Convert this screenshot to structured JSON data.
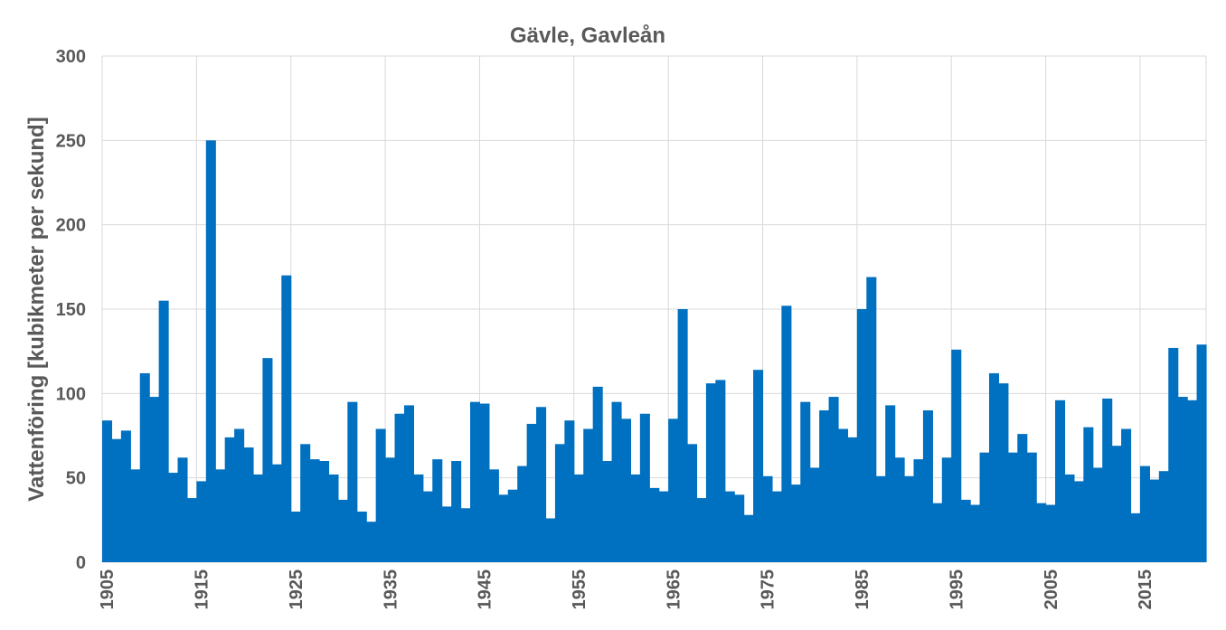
{
  "chart_data": {
    "type": "bar",
    "title": "Gävle, Gavleån",
    "xlabel": "",
    "ylabel": "Vattenföring [kubikmeter per sekund]",
    "ylim": [
      0,
      300
    ],
    "yticks": [
      "0",
      "50",
      "100",
      "150",
      "200",
      "250",
      "300"
    ],
    "xticks": [
      "1905",
      "1915",
      "1925",
      "1935",
      "1945",
      "1955",
      "1965",
      "1975",
      "1985",
      "1995",
      "2005",
      "2015"
    ],
    "grid": true,
    "color": "#0070C0",
    "x": [
      1905,
      1906,
      1907,
      1908,
      1909,
      1910,
      1911,
      1912,
      1913,
      1914,
      1915,
      1916,
      1917,
      1918,
      1919,
      1920,
      1921,
      1922,
      1923,
      1924,
      1925,
      1926,
      1927,
      1928,
      1929,
      1930,
      1931,
      1932,
      1933,
      1934,
      1935,
      1936,
      1937,
      1938,
      1939,
      1940,
      1941,
      1942,
      1943,
      1944,
      1945,
      1946,
      1947,
      1948,
      1949,
      1950,
      1951,
      1952,
      1953,
      1954,
      1955,
      1956,
      1957,
      1958,
      1959,
      1960,
      1961,
      1962,
      1963,
      1964,
      1965,
      1966,
      1967,
      1968,
      1969,
      1970,
      1971,
      1972,
      1973,
      1974,
      1975,
      1976,
      1977,
      1978,
      1979,
      1980,
      1981,
      1982,
      1983,
      1984,
      1985,
      1986,
      1987,
      1988,
      1989,
      1990,
      1991,
      1992,
      1993,
      1994,
      1995,
      1996,
      1997,
      1998,
      1999,
      2000,
      2001,
      2002,
      2003,
      2004,
      2005,
      2006,
      2007,
      2008,
      2009,
      2010,
      2011,
      2012,
      2013,
      2014,
      2015,
      2016,
      2017,
      2018,
      2019,
      2020,
      2021
    ],
    "values": [
      84,
      73,
      78,
      55,
      112,
      98,
      155,
      53,
      62,
      38,
      48,
      250,
      55,
      74,
      79,
      68,
      52,
      121,
      58,
      170,
      30,
      70,
      61,
      60,
      52,
      37,
      95,
      30,
      24,
      79,
      62,
      88,
      93,
      52,
      42,
      61,
      33,
      60,
      32,
      95,
      94,
      55,
      40,
      43,
      57,
      82,
      92,
      26,
      70,
      84,
      52,
      79,
      104,
      60,
      95,
      85,
      52,
      88,
      44,
      42,
      85,
      150,
      70,
      38,
      106,
      108,
      42,
      40,
      28,
      114,
      51,
      42,
      152,
      46,
      95,
      56,
      90,
      98,
      79,
      74,
      150,
      169,
      51,
      93,
      62,
      51,
      61,
      90,
      35,
      62,
      126,
      37,
      34,
      65,
      112,
      106,
      65,
      76,
      65,
      35,
      34,
      96,
      52,
      48,
      80,
      56,
      97,
      69,
      79,
      29,
      57,
      49,
      54,
      127,
      98,
      96,
      129
    ]
  }
}
